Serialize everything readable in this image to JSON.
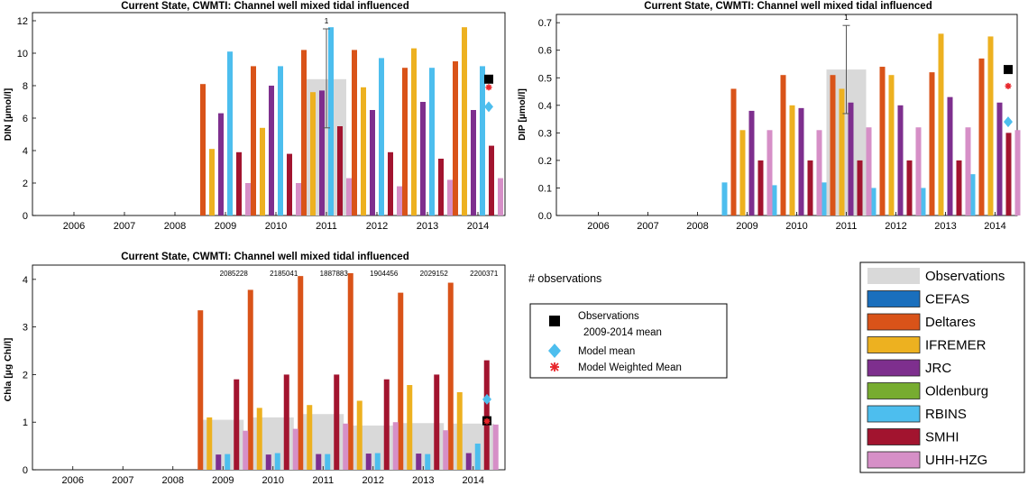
{
  "colors": {
    "Observations": "#d9d9d9",
    "CEFAS": "#1a6fbd",
    "Deltares": "#d95319",
    "IFREMER": "#edb120",
    "JRC": "#7e2f8e",
    "Oldenburg": "#77ac30",
    "RBINS": "#4dbeee",
    "SMHI": "#a2142f",
    "UHH-HZG": "#d68fc7",
    "obs_mean": "#000000",
    "model_mean": "#4dbeee",
    "weighted_mean": "#e8262b"
  },
  "legend_models": {
    "title": "",
    "entries": [
      "Observations",
      "CEFAS",
      "Deltares",
      "IFREMER",
      "JRC",
      "Oldenburg",
      "RBINS",
      "SMHI",
      "UHH-HZG"
    ]
  },
  "legend_markers": {
    "heading": "# observations",
    "obs_line1": "Observations",
    "obs_line2": "2009-2014 mean",
    "model_mean": "Model mean",
    "weighted_mean": "Model Weighted Mean"
  },
  "chart_data": [
    {
      "type": "bar",
      "title": "Current State, CWMTI: Channel well mixed tidal influenced",
      "ylabel": "DIN [µmol/l]",
      "xlabel": "",
      "categories": [
        "2006",
        "2007",
        "2008",
        "2009",
        "2010",
        "2011",
        "2012",
        "2013",
        "2014"
      ],
      "ylim": [
        0,
        12.5
      ],
      "yticks": [
        0,
        2,
        4,
        6,
        8,
        10,
        12
      ],
      "grid": false,
      "observations": [
        null,
        null,
        null,
        null,
        null,
        8.4,
        null,
        null,
        null
      ],
      "obs_error": [
        null,
        null,
        null,
        null,
        null,
        [
          5.4,
          11.5
        ],
        null,
        null,
        null
      ],
      "obs_counts": [
        "",
        "",
        "",
        "",
        "",
        "1",
        "",
        "",
        ""
      ],
      "series": [
        {
          "name": "Deltares",
          "values": [
            null,
            null,
            null,
            8.1,
            9.2,
            10.2,
            10.2,
            9.1,
            9.5
          ]
        },
        {
          "name": "IFREMER",
          "values": [
            null,
            null,
            null,
            4.1,
            5.4,
            7.6,
            7.9,
            10.3,
            11.6
          ]
        },
        {
          "name": "JRC",
          "values": [
            null,
            null,
            null,
            6.3,
            8.0,
            7.7,
            6.5,
            7.0,
            6.5
          ]
        },
        {
          "name": "RBINS",
          "values": [
            null,
            null,
            null,
            10.1,
            9.2,
            11.6,
            9.7,
            9.1,
            9.2
          ]
        },
        {
          "name": "SMHI",
          "values": [
            null,
            null,
            null,
            3.9,
            3.8,
            5.5,
            3.9,
            3.5,
            4.3
          ]
        },
        {
          "name": "UHH-HZG",
          "values": [
            null,
            null,
            null,
            2.0,
            2.0,
            2.3,
            1.8,
            2.2,
            2.3
          ]
        }
      ],
      "obs_mean": 8.4,
      "model_mean": 6.7,
      "weighted_mean": 7.9
    },
    {
      "type": "bar",
      "title": "Current State, CWMTI: Channel well mixed tidal influenced",
      "ylabel": "DIP [µmol/l]",
      "xlabel": "",
      "categories": [
        "2006",
        "2007",
        "2008",
        "2009",
        "2010",
        "2011",
        "2012",
        "2013",
        "2014"
      ],
      "ylim": [
        0,
        0.73
      ],
      "yticks": [
        0,
        0.1,
        0.2,
        0.3,
        0.4,
        0.5,
        0.6,
        0.7
      ],
      "grid": false,
      "observations": [
        null,
        null,
        null,
        null,
        null,
        0.53,
        null,
        null,
        null
      ],
      "obs_error": [
        null,
        null,
        null,
        null,
        null,
        [
          0.37,
          0.69
        ],
        null,
        null,
        null
      ],
      "obs_counts": [
        "",
        "",
        "",
        "",
        "",
        "1",
        "",
        "",
        ""
      ],
      "series": [
        {
          "name": "RBINS",
          "values": [
            null,
            null,
            null,
            0.12,
            0.11,
            0.12,
            0.1,
            0.1,
            0.15
          ]
        },
        {
          "name": "Deltares",
          "values": [
            null,
            null,
            null,
            0.46,
            0.51,
            0.51,
            0.54,
            0.52,
            0.57
          ]
        },
        {
          "name": "IFREMER",
          "values": [
            null,
            null,
            null,
            0.31,
            0.4,
            0.46,
            0.51,
            0.66,
            0.65
          ]
        },
        {
          "name": "JRC",
          "values": [
            null,
            null,
            null,
            0.38,
            0.39,
            0.41,
            0.4,
            0.43,
            0.41
          ]
        },
        {
          "name": "SMHI",
          "values": [
            null,
            null,
            null,
            0.2,
            0.2,
            0.2,
            0.2,
            0.2,
            0.3
          ]
        },
        {
          "name": "UHH-HZG",
          "values": [
            null,
            null,
            null,
            0.31,
            0.31,
            0.32,
            0.32,
            0.32,
            0.31
          ]
        }
      ],
      "obs_mean": 0.53,
      "model_mean": 0.34,
      "weighted_mean": 0.47
    },
    {
      "type": "bar",
      "title": "Current State, CWMTI: Channel well mixed tidal influenced",
      "ylabel": "Chla [µg Chl/l]",
      "xlabel": "",
      "categories": [
        "2006",
        "2007",
        "2008",
        "2009",
        "2010",
        "2011",
        "2012",
        "2013",
        "2014"
      ],
      "ylim": [
        0,
        4.3
      ],
      "yticks": [
        0,
        1,
        2,
        3,
        4
      ],
      "grid": false,
      "observations": [
        null,
        null,
        null,
        1.05,
        1.1,
        1.17,
        0.93,
        0.98,
        0.97
      ],
      "obs_error": [
        null,
        null,
        null,
        null,
        null,
        null,
        null,
        null,
        null
      ],
      "obs_counts": [
        "",
        "",
        "",
        "2085228",
        "2185041",
        "1887883",
        "1904456",
        "2029152",
        "2200371"
      ],
      "series": [
        {
          "name": "Deltares",
          "values": [
            null,
            null,
            null,
            3.35,
            3.78,
            4.07,
            4.13,
            3.72,
            3.93
          ]
        },
        {
          "name": "IFREMER",
          "values": [
            null,
            null,
            null,
            1.1,
            1.3,
            1.36,
            1.45,
            1.78,
            1.63
          ]
        },
        {
          "name": "JRC",
          "values": [
            null,
            null,
            null,
            0.32,
            0.32,
            0.33,
            0.34,
            0.34,
            0.35
          ]
        },
        {
          "name": "RBINS",
          "values": [
            null,
            null,
            null,
            0.33,
            0.35,
            0.33,
            0.35,
            0.33,
            0.55
          ]
        },
        {
          "name": "SMHI",
          "values": [
            null,
            null,
            null,
            1.9,
            2.0,
            2.0,
            1.9,
            2.0,
            2.3
          ]
        },
        {
          "name": "UHH-HZG",
          "values": [
            null,
            null,
            null,
            0.82,
            0.86,
            0.97,
            1.0,
            0.83,
            0.95
          ]
        }
      ],
      "obs_mean": 1.03,
      "model_mean": 1.48,
      "weighted_mean": 1.02
    }
  ]
}
